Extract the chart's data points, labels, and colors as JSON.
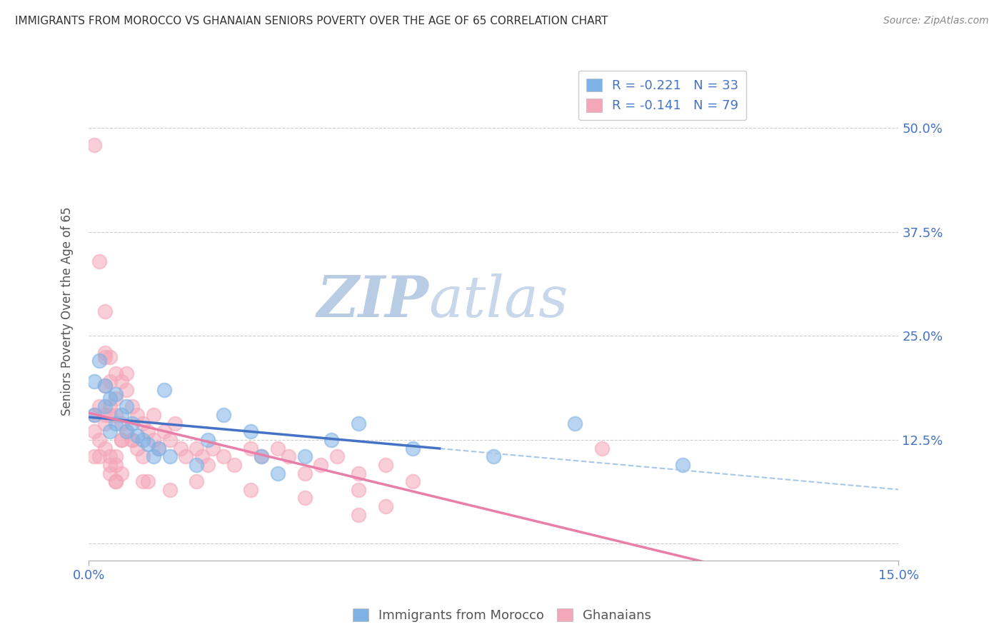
{
  "title": "IMMIGRANTS FROM MOROCCO VS GHANAIAN SENIORS POVERTY OVER THE AGE OF 65 CORRELATION CHART",
  "source": "Source: ZipAtlas.com",
  "ylabel": "Seniors Poverty Over the Age of 65",
  "xlim": [
    0.0,
    0.15
  ],
  "ylim": [
    -0.02,
    0.58
  ],
  "xtick_positions": [
    0.0,
    0.15
  ],
  "xtick_labels": [
    "0.0%",
    "15.0%"
  ],
  "ytick_positions": [
    0.0,
    0.125,
    0.25,
    0.375,
    0.5
  ],
  "ytick_labels": [
    "",
    "12.5%",
    "25.0%",
    "37.5%",
    "50.0%"
  ],
  "legend_r1": "R = -0.221   N = 33",
  "legend_r2": "R = -0.141   N = 79",
  "color_blue": "#7EB2E4",
  "color_pink": "#F4A7B9",
  "color_line_blue": "#4472C4",
  "color_line_pink": "#E97FA8",
  "color_dashed": "#A8C8E8",
  "watermark_zip": "ZIP",
  "watermark_atlas": "atlas",
  "watermark_color": "#C8D8EA",
  "legend_label_1": "Immigrants from Morocco",
  "legend_label_2": "Ghanaians",
  "morocco_x": [
    0.001,
    0.001,
    0.002,
    0.003,
    0.003,
    0.004,
    0.004,
    0.005,
    0.005,
    0.006,
    0.007,
    0.007,
    0.008,
    0.009,
    0.01,
    0.011,
    0.012,
    0.013,
    0.014,
    0.015,
    0.02,
    0.022,
    0.025,
    0.03,
    0.032,
    0.035,
    0.04,
    0.045,
    0.05,
    0.06,
    0.075,
    0.09,
    0.11
  ],
  "morocco_y": [
    0.155,
    0.195,
    0.22,
    0.165,
    0.19,
    0.135,
    0.175,
    0.145,
    0.18,
    0.155,
    0.135,
    0.165,
    0.145,
    0.13,
    0.125,
    0.12,
    0.105,
    0.115,
    0.185,
    0.105,
    0.095,
    0.125,
    0.155,
    0.135,
    0.105,
    0.085,
    0.105,
    0.125,
    0.145,
    0.115,
    0.105,
    0.145,
    0.095
  ],
  "ghana_x": [
    0.001,
    0.001,
    0.001,
    0.002,
    0.002,
    0.002,
    0.003,
    0.003,
    0.003,
    0.003,
    0.004,
    0.004,
    0.004,
    0.005,
    0.005,
    0.005,
    0.006,
    0.006,
    0.007,
    0.007,
    0.008,
    0.008,
    0.009,
    0.009,
    0.01,
    0.01,
    0.011,
    0.011,
    0.012,
    0.012,
    0.013,
    0.014,
    0.015,
    0.016,
    0.017,
    0.018,
    0.02,
    0.021,
    0.022,
    0.023,
    0.025,
    0.027,
    0.03,
    0.032,
    0.035,
    0.037,
    0.04,
    0.043,
    0.046,
    0.05,
    0.055,
    0.06,
    0.001,
    0.002,
    0.003,
    0.004,
    0.005,
    0.003,
    0.004,
    0.005,
    0.006,
    0.007,
    0.008,
    0.004,
    0.005,
    0.006,
    0.003,
    0.004,
    0.005,
    0.006,
    0.01,
    0.015,
    0.02,
    0.03,
    0.04,
    0.05,
    0.055,
    0.095,
    0.05
  ],
  "ghana_y": [
    0.48,
    0.155,
    0.105,
    0.34,
    0.165,
    0.105,
    0.28,
    0.23,
    0.19,
    0.145,
    0.225,
    0.195,
    0.165,
    0.205,
    0.175,
    0.155,
    0.195,
    0.145,
    0.185,
    0.135,
    0.165,
    0.125,
    0.155,
    0.115,
    0.145,
    0.105,
    0.135,
    0.075,
    0.155,
    0.125,
    0.115,
    0.135,
    0.125,
    0.145,
    0.115,
    0.105,
    0.115,
    0.105,
    0.095,
    0.115,
    0.105,
    0.095,
    0.115,
    0.105,
    0.115,
    0.105,
    0.085,
    0.095,
    0.105,
    0.085,
    0.095,
    0.075,
    0.135,
    0.125,
    0.115,
    0.105,
    0.095,
    0.225,
    0.155,
    0.105,
    0.085,
    0.205,
    0.125,
    0.095,
    0.075,
    0.125,
    0.155,
    0.085,
    0.075,
    0.125,
    0.075,
    0.065,
    0.075,
    0.065,
    0.055,
    0.065,
    0.045,
    0.115,
    0.035
  ]
}
